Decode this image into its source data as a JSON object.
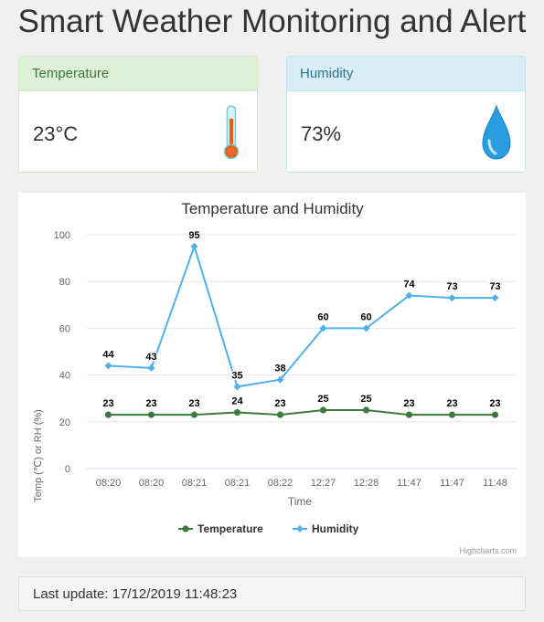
{
  "page": {
    "title": "Smart Weather Monitoring and Alert"
  },
  "temperature_panel": {
    "heading": "Temperature",
    "value": "23°C",
    "icon": "thermometer-icon"
  },
  "humidity_panel": {
    "heading": "Humidity",
    "value": "73%",
    "icon": "water-drop-icon"
  },
  "colors": {
    "temperature": "#3d7a3d",
    "humidity": "#4fb1e8"
  },
  "chart_data": {
    "type": "line",
    "title": "Temperature and Humidity",
    "xlabel": "Time",
    "ylabel": "Temp (℃) or RH (%)",
    "ylim": [
      0,
      100
    ],
    "yticks": [
      0,
      20,
      40,
      60,
      80,
      100
    ],
    "categories": [
      "08:20",
      "08:20",
      "08:21",
      "08:21",
      "08:22",
      "12:27",
      "12:28",
      "11:47",
      "11:47",
      "11:48"
    ],
    "series": [
      {
        "name": "Temperature",
        "values": [
          23,
          23,
          23,
          24,
          23,
          25,
          25,
          23,
          23,
          23
        ],
        "color": "#3d7a3d",
        "marker": "circle"
      },
      {
        "name": "Humidity",
        "values": [
          44,
          43,
          95,
          35,
          38,
          60,
          60,
          74,
          73,
          73
        ],
        "color": "#4fb1e8",
        "marker": "diamond"
      }
    ],
    "grid": true,
    "legend": "bottom-center",
    "credits": "Highcharts.com"
  },
  "footer": {
    "last_update": "Last update: 17/12/2019 11:48:23"
  }
}
